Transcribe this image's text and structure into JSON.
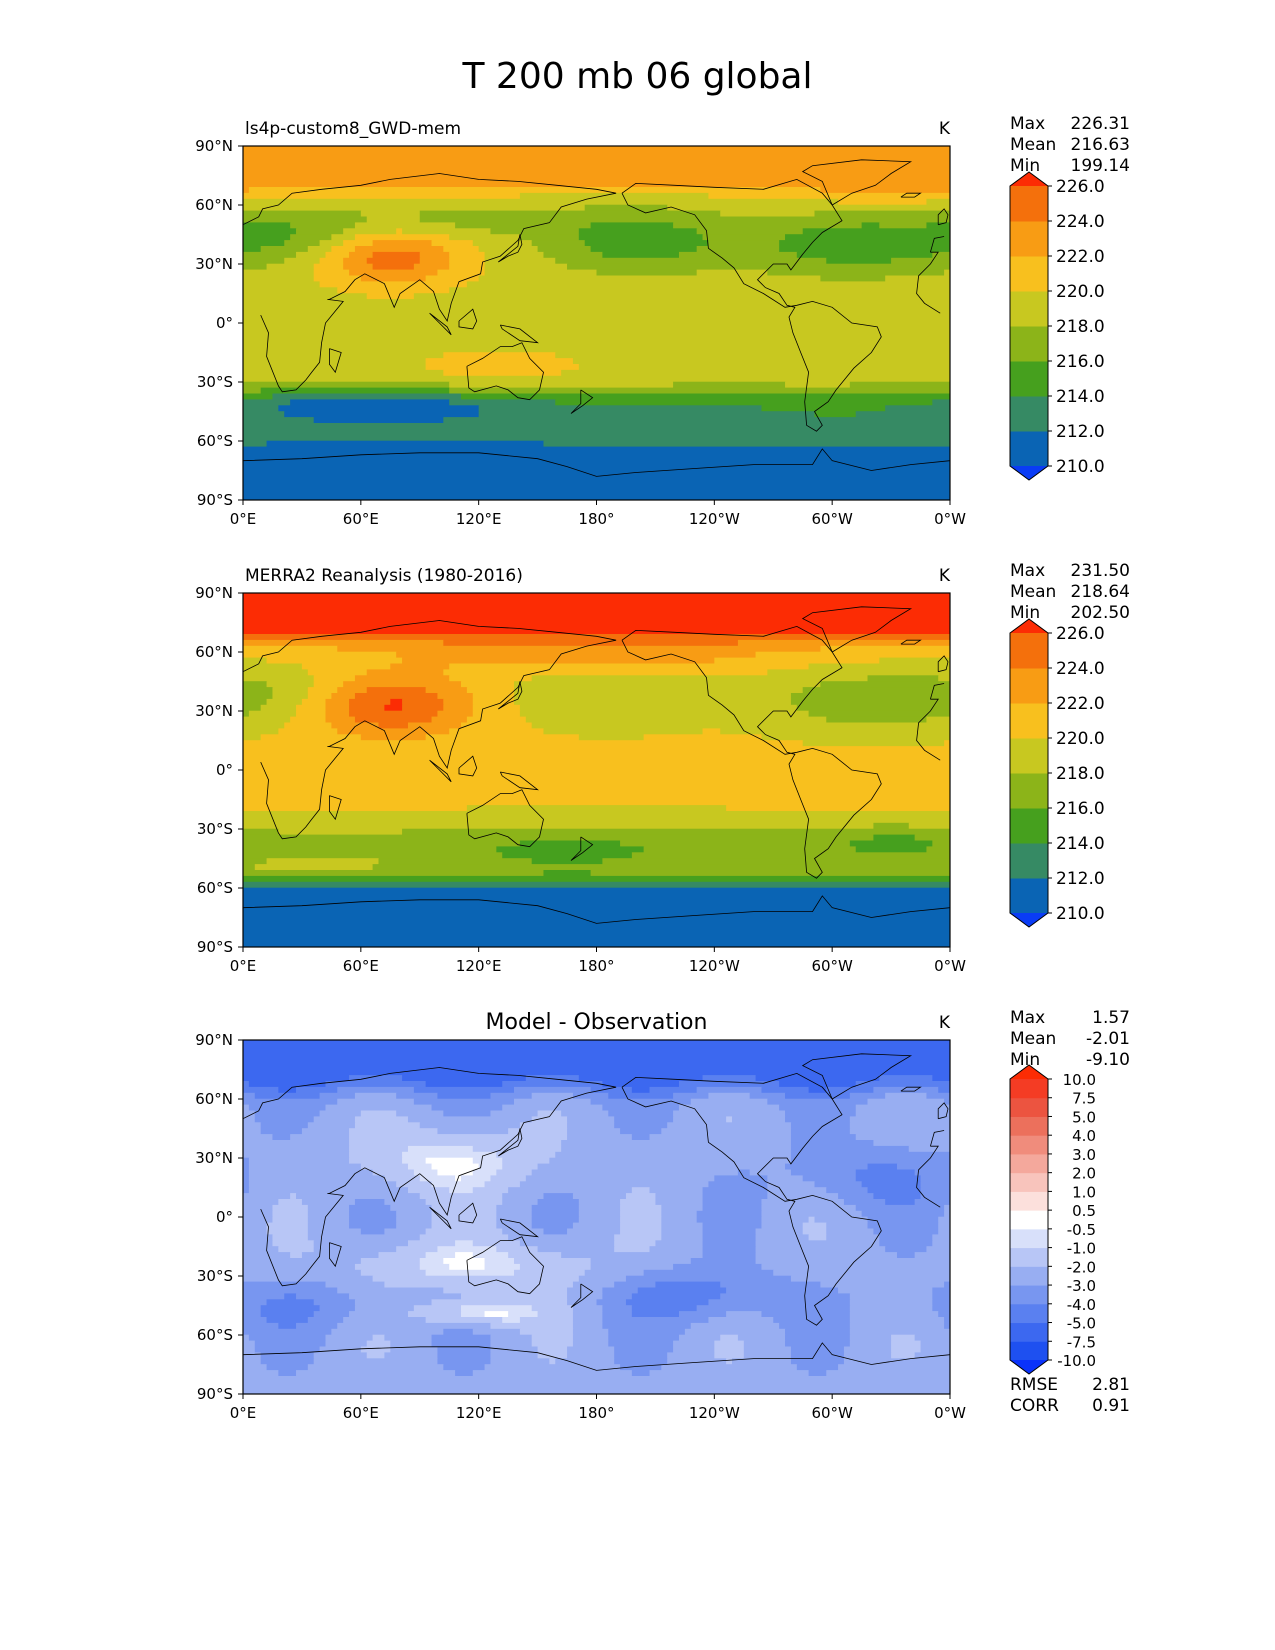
{
  "figure": {
    "title": "T 200 mb 06 global"
  },
  "chart_data": [
    {
      "type": "heatmap",
      "title": "ls4p-custom8_GWD-mem",
      "units": "K",
      "xlim": [
        0,
        360
      ],
      "ylim": [
        -90,
        90
      ],
      "xticks": [
        "0°E",
        "60°E",
        "120°E",
        "180°",
        "120°W",
        "60°W",
        "0°W"
      ],
      "yticks": [
        "90°N",
        "60°N",
        "30°N",
        "0°",
        "30°S",
        "60°S",
        "90°S"
      ],
      "stats": [
        {
          "label": "Max",
          "value": "226.31"
        },
        {
          "label": "Mean",
          "value": "216.63"
        },
        {
          "label": "Min",
          "value": "199.14"
        }
      ],
      "colorbar": {
        "levels": [
          208,
          210,
          212,
          214,
          216,
          218,
          220,
          222,
          224,
          226,
          228
        ],
        "colors": [
          "#0a3cf5",
          "#0a64b4",
          "#368a64",
          "#46a01e",
          "#8cb419",
          "#c8c820",
          "#f8c01e",
          "#f89c14",
          "#f4700c",
          "#fc2c04"
        ],
        "tick_labels": [
          "210.0",
          "212.0",
          "214.0",
          "216.0",
          "218.0",
          "220.0",
          "222.0",
          "224.0",
          "226.0"
        ],
        "tick_values": [
          210,
          212,
          214,
          216,
          218,
          220,
          222,
          224,
          226
        ],
        "extend": "both"
      }
    },
    {
      "type": "heatmap",
      "title": "MERRA2 Reanalysis (1980-2016)",
      "units": "K",
      "xlim": [
        0,
        360
      ],
      "ylim": [
        -90,
        90
      ],
      "xticks": [
        "0°E",
        "60°E",
        "120°E",
        "180°",
        "120°W",
        "60°W",
        "0°W"
      ],
      "yticks": [
        "90°N",
        "60°N",
        "30°N",
        "0°",
        "30°S",
        "60°S",
        "90°S"
      ],
      "stats": [
        {
          "label": "Max",
          "value": "231.50"
        },
        {
          "label": "Mean",
          "value": "218.64"
        },
        {
          "label": "Min",
          "value": "202.50"
        }
      ],
      "colorbar": {
        "levels": [
          208,
          210,
          212,
          214,
          216,
          218,
          220,
          222,
          224,
          226,
          228
        ],
        "colors": [
          "#0a3cf5",
          "#0a64b4",
          "#368a64",
          "#46a01e",
          "#8cb419",
          "#c8c820",
          "#f8c01e",
          "#f89c14",
          "#f4700c",
          "#fc2c04"
        ],
        "tick_labels": [
          "210.0",
          "212.0",
          "214.0",
          "216.0",
          "218.0",
          "220.0",
          "222.0",
          "224.0",
          "226.0"
        ],
        "tick_values": [
          210,
          212,
          214,
          216,
          218,
          220,
          222,
          224,
          226
        ],
        "extend": "both"
      }
    },
    {
      "type": "heatmap",
      "title": "Model - Observation",
      "units": "K",
      "xlim": [
        0,
        360
      ],
      "ylim": [
        -90,
        90
      ],
      "xticks": [
        "0°E",
        "60°E",
        "120°E",
        "180°",
        "120°W",
        "60°W",
        "0°W"
      ],
      "yticks": [
        "90°N",
        "60°N",
        "30°N",
        "0°",
        "30°S",
        "60°S",
        "90°S"
      ],
      "stats": [
        {
          "label": "Max",
          "value": "1.57"
        },
        {
          "label": "Mean",
          "value": "-2.01"
        },
        {
          "label": "Min",
          "value": "-9.10"
        }
      ],
      "extra_stats": [
        {
          "label": "RMSE",
          "value": "2.81"
        },
        {
          "label": "CORR",
          "value": "0.91"
        }
      ],
      "colorbar": {
        "levels": [
          -12.5,
          -10,
          -7.5,
          -5,
          -4,
          -3,
          -2,
          -1,
          -0.5,
          0.5,
          1,
          2,
          3,
          4,
          5,
          7.5,
          10,
          12.5
        ],
        "colors": [
          "#0a32fa",
          "#1e50f0",
          "#3c68f0",
          "#5a80f0",
          "#7896f0",
          "#98aef2",
          "#b8c6f6",
          "#d8e0fa",
          "#ffffff",
          "#fce0dc",
          "#f8c4bc",
          "#f4a89c",
          "#f08c7c",
          "#ec705c",
          "#ec5440",
          "#f43c24",
          "#fc2c04"
        ],
        "tick_labels": [
          "-10.0",
          "-7.5",
          "-5.0",
          "-4.0",
          "-3.0",
          "-2.0",
          "-1.0",
          "-0.5",
          "0.5",
          "1.0",
          "2.0",
          "3.0",
          "4.0",
          "5.0",
          "7.5",
          "10.0"
        ],
        "tick_values": [
          -10,
          -7.5,
          -5,
          -4,
          -3,
          -2,
          -1,
          -0.5,
          0.5,
          1,
          2,
          3,
          4,
          5,
          7.5,
          10
        ],
        "extend": "both"
      }
    }
  ]
}
